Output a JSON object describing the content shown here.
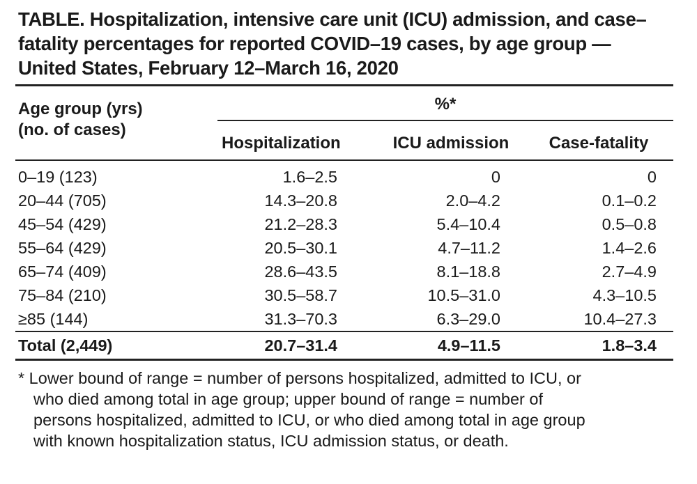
{
  "title_lines": [
    "TABLE. Hospitalization, intensive care unit (ICU) admission, and case–",
    "fatality percentages for reported COVID–19 cases, by age group —",
    "United States, February 12–March 16, 2020"
  ],
  "header": {
    "group_label_line1": "Age group (yrs)",
    "group_label_line2": "(no. of cases)",
    "percent_label": "%*",
    "columns": [
      "Hospitalization",
      "ICU admission",
      "Case-fatality"
    ]
  },
  "rows": [
    {
      "age": "0–19 (123)",
      "hosp": "1.6–2.5",
      "icu": "0",
      "cfr": "0"
    },
    {
      "age": "20–44 (705)",
      "hosp": "14.3–20.8",
      "icu": "2.0–4.2",
      "cfr": "0.1–0.2"
    },
    {
      "age": "45–54 (429)",
      "hosp": "21.2–28.3",
      "icu": "5.4–10.4",
      "cfr": "0.5–0.8"
    },
    {
      "age": "55–64 (429)",
      "hosp": "20.5–30.1",
      "icu": "4.7–11.2",
      "cfr": "1.4–2.6"
    },
    {
      "age": "65–74 (409)",
      "hosp": "28.6–43.5",
      "icu": "8.1–18.8",
      "cfr": "2.7–4.9"
    },
    {
      "age": "75–84 (210)",
      "hosp": "30.5–58.7",
      "icu": "10.5–31.0",
      "cfr": "4.3–10.5"
    },
    {
      "age": "≥85 (144)",
      "hosp": "31.3–70.3",
      "icu": "6.3–29.0",
      "cfr": "10.4–27.3"
    }
  ],
  "total": {
    "age": "Total (2,449)",
    "hosp": "20.7–31.4",
    "icu": "4.9–11.5",
    "cfr": "1.8–3.4"
  },
  "footnote_lines": [
    "* Lower bound of range = number of persons hospitalized, admitted to ICU, or",
    "who died among total in age group; upper bound of range = number of",
    "persons hospitalized, admitted to ICU, or who died among total in age group",
    "with known hospitalization status, ICU admission status, or death."
  ]
}
